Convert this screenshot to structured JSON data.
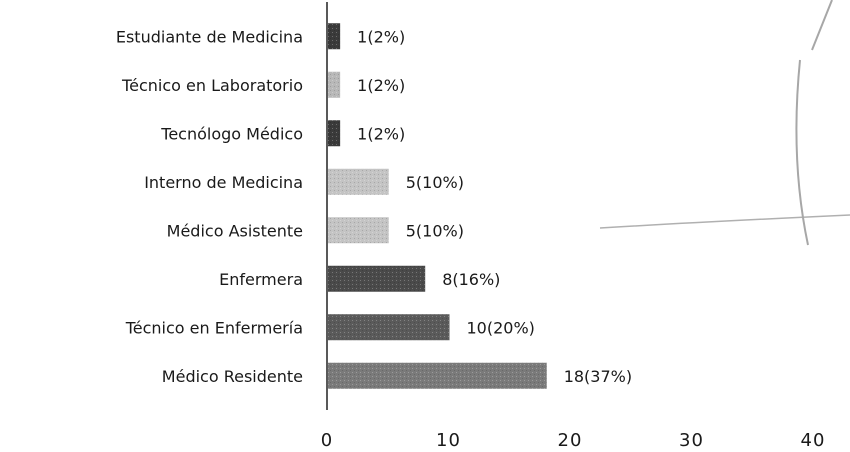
{
  "chart_data": {
    "type": "bar",
    "orientation": "horizontal",
    "categories": [
      "Estudiante de Medicina",
      "Técnico en Laboratorio",
      "Tecnólogo Médico",
      "Interno de Medicina",
      "Médico Asistente",
      "Enfermera",
      "Técnico en Enfermería",
      "Médico Residente"
    ],
    "values": [
      1,
      1,
      1,
      5,
      5,
      8,
      10,
      18
    ],
    "data_labels": [
      "1(2%)",
      "1(2%)",
      "1(2%)",
      "5(10%)",
      "5(10%)",
      "8(16%)",
      "10(20%)",
      "18(37%)"
    ],
    "bar_colors": [
      "#3a3a3a",
      "#b8b8b8",
      "#3a3a3a",
      "#c4c4c4",
      "#c4c4c4",
      "#4a4a4a",
      "#5a5a5a",
      "#7a7a7a"
    ],
    "xlim": [
      0,
      40
    ],
    "xticks": [
      "0",
      "10",
      "20",
      "30",
      "40"
    ],
    "title": "",
    "xlabel": "",
    "ylabel": "",
    "grid": false,
    "legend": "none"
  }
}
